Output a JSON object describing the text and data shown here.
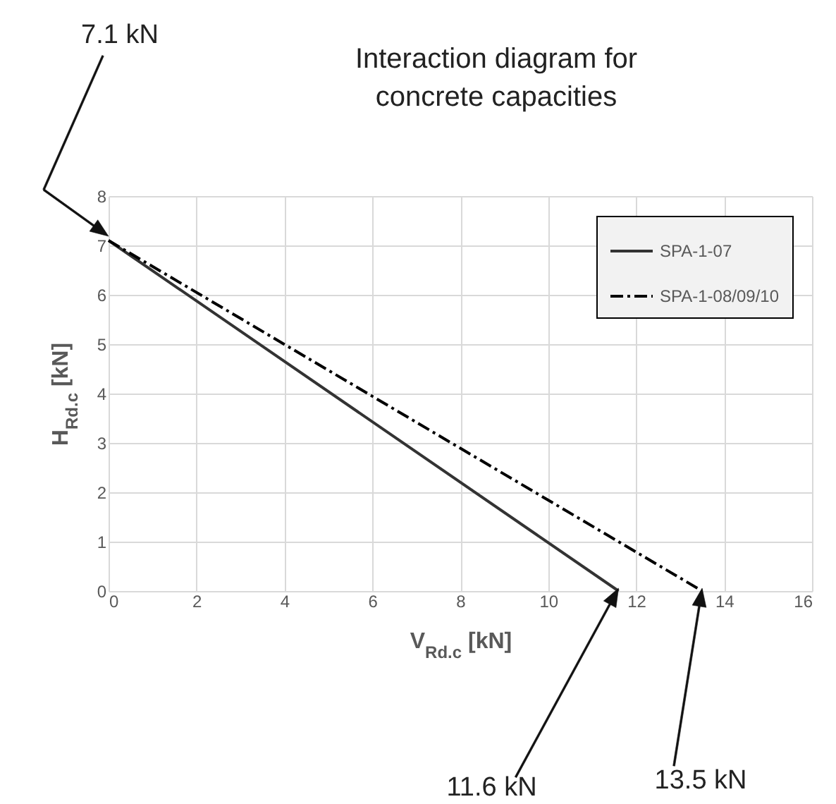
{
  "chart_data": {
    "type": "line",
    "title": "Interaction diagram for concrete capacities",
    "xlabel": "V$_{Rd.c}$  [kN]",
    "ylabel": "H$_{Rd.c}$ [kN]",
    "series": [
      {
        "name": "SPA-1-07",
        "color": "#333333",
        "line_style": "solid",
        "x": [
          0,
          11.6
        ],
        "values": [
          7.1,
          0
        ]
      },
      {
        "name": "SPA-1-08/09/10",
        "color": "#000000",
        "line_style": "dashed",
        "x": [
          0,
          13.5
        ],
        "values": [
          7.1,
          0
        ]
      }
    ],
    "xlim": [
      0,
      16
    ],
    "xticks": [
      0,
      2,
      4,
      6,
      8,
      10,
      12,
      14,
      16
    ],
    "ylim": [
      0,
      8
    ],
    "yticks": [
      0,
      1,
      2,
      3,
      4,
      5,
      6,
      7,
      8
    ],
    "grid": true,
    "legend": "top right",
    "marker": "none",
    "annotations": [
      "7.1 kN",
      "11.6 kN",
      "13.5 kN"
    ]
  }
}
